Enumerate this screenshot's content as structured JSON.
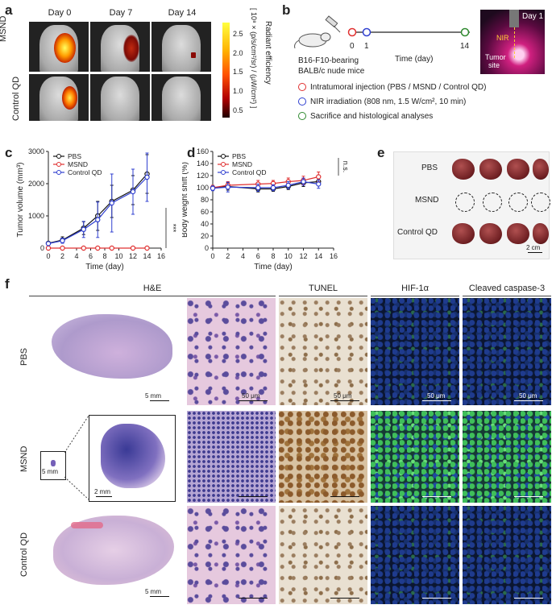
{
  "panels": {
    "a": {
      "label": "a",
      "days": [
        "Day 0",
        "Day 7",
        "Day 14"
      ],
      "rows": [
        "MSND",
        "Control QD"
      ],
      "colorbar": {
        "title": "Radiant efficiency",
        "unit": "[ 10⁸ × (p/s/cm²/sr) / (μW/cm²) ]",
        "ticks": [
          "2.5",
          "2.0",
          "1.5",
          "1.0",
          "0.5"
        ]
      }
    },
    "b": {
      "label": "b",
      "timeline_ticks": [
        "0",
        "1",
        "14"
      ],
      "xlabel": "Time (day)",
      "mouse_caption": [
        "B16-F10-bearing",
        "BALB/c nude mice"
      ],
      "photo_labels": {
        "day": "Day 1",
        "nir": "NIR",
        "tumor": "Tumor",
        "site": "site"
      },
      "legend": [
        {
          "text": "Intratumoral injection (PBS / MSND / Control QD)",
          "color": "#e03030"
        },
        {
          "text": "NIR irradiation (808 nm, 1.5 W/cm², 10 min)",
          "color": "#3040d0"
        },
        {
          "text": "Sacrifice and histological analyses",
          "color": "#2f8a2f"
        }
      ]
    },
    "c": {
      "label": "c"
    },
    "d": {
      "label": "d"
    },
    "e": {
      "label": "e",
      "rows": [
        "PBS",
        "MSND",
        "Control QD"
      ],
      "scale": "2 cm"
    },
    "f": {
      "label": "f",
      "columns": [
        "H&E",
        "TUNEL",
        "HIF-1α",
        "Cleaved caspase-3"
      ],
      "rows": [
        "PBS",
        "MSND",
        "Control QD"
      ],
      "scales": {
        "mm5": "5 mm",
        "mm2": "2 mm",
        "um50": "50 μm"
      }
    }
  },
  "chart_data": [
    {
      "type": "line",
      "title": "",
      "xlabel": "Time (day)",
      "ylabel": "Tumor volume (mm³)",
      "xlim": [
        0,
        16
      ],
      "ylim": [
        0,
        3000
      ],
      "xticks": [
        0,
        2,
        4,
        6,
        8,
        10,
        12,
        14,
        16
      ],
      "yticks": [
        0,
        1000,
        2000,
        3000
      ],
      "legend": "top-left",
      "annotation": "***",
      "series": [
        {
          "name": "PBS",
          "color": "#111111",
          "x": [
            0,
            2,
            5,
            7,
            9,
            12,
            14
          ],
          "y": [
            150,
            250,
            620,
            1000,
            1450,
            1800,
            2300
          ],
          "err": [
            50,
            100,
            200,
            450,
            500,
            450,
            600
          ]
        },
        {
          "name": "MSND",
          "color": "#e03030",
          "x": [
            0,
            2,
            5,
            7,
            9,
            12,
            14
          ],
          "y": [
            0,
            0,
            0,
            0,
            0,
            0,
            0
          ],
          "err": [
            0,
            0,
            0,
            0,
            0,
            0,
            0
          ]
        },
        {
          "name": "Control QD",
          "color": "#3040d0",
          "x": [
            0,
            2,
            5,
            7,
            9,
            12,
            14
          ],
          "y": [
            140,
            230,
            580,
            880,
            1400,
            1750,
            2200
          ],
          "err": [
            50,
            80,
            250,
            550,
            900,
            700,
            750
          ]
        }
      ]
    },
    {
      "type": "line",
      "title": "",
      "xlabel": "Time (day)",
      "ylabel": "Body weight shift (%)",
      "xlim": [
        0,
        16
      ],
      "ylim": [
        0,
        160
      ],
      "xticks": [
        0,
        2,
        4,
        6,
        8,
        10,
        12,
        14,
        16
      ],
      "yticks": [
        0,
        20,
        40,
        60,
        80,
        100,
        120,
        140,
        160
      ],
      "legend": "top-left",
      "annotation": "n.s.",
      "series": [
        {
          "name": "PBS",
          "color": "#111111",
          "x": [
            0,
            2,
            6,
            8,
            10,
            12,
            14
          ],
          "y": [
            100,
            102,
            98,
            98,
            102,
            108,
            110
          ],
          "err": [
            4,
            6,
            5,
            4,
            5,
            6,
            6
          ]
        },
        {
          "name": "MSND",
          "color": "#e03030",
          "x": [
            0,
            2,
            6,
            8,
            10,
            12,
            14
          ],
          "y": [
            100,
            104,
            106,
            107,
            110,
            112,
            118
          ],
          "err": [
            4,
            6,
            6,
            5,
            6,
            7,
            8
          ]
        },
        {
          "name": "Control QD",
          "color": "#3040d0",
          "x": [
            0,
            2,
            6,
            8,
            10,
            12,
            14
          ],
          "y": [
            99,
            101,
            100,
            100,
            104,
            110,
            106
          ],
          "err": [
            4,
            8,
            6,
            5,
            6,
            6,
            7
          ]
        }
      ]
    }
  ]
}
